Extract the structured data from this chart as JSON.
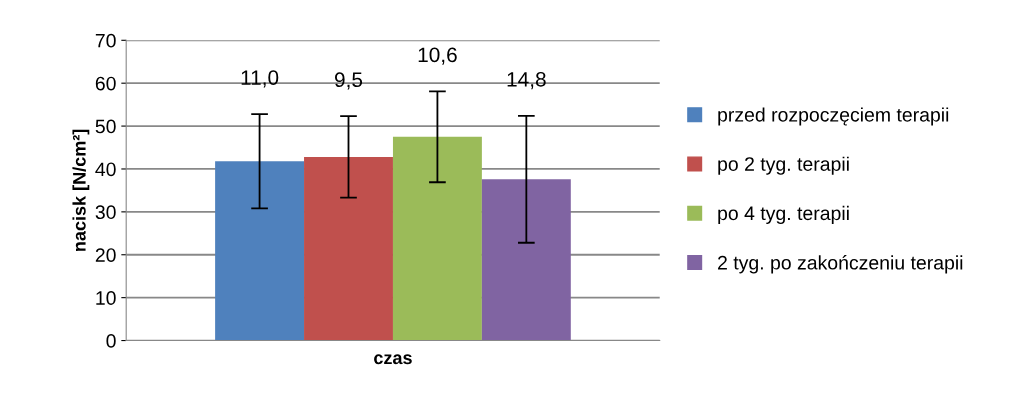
{
  "chart_data": {
    "type": "bar",
    "ylabel": "nacisk [N/cm²]",
    "xlabel": "czas",
    "categories": [
      null
    ],
    "series": [
      {
        "name": "przed rozpoczęciem terapii",
        "color": "#4f81bd",
        "values": [
          41.8
        ],
        "errors": [
          11.0
        ]
      },
      {
        "name": "po 2 tyg. terapii",
        "color": "#c0504d",
        "values": [
          42.8
        ],
        "errors": [
          9.5
        ]
      },
      {
        "name": "po 4 tyg. terapii",
        "color": "#9bbb59",
        "values": [
          47.5
        ],
        "errors": [
          10.6
        ]
      },
      {
        "name": "2 tyg. po zakończeniu terapii",
        "color": "#8064a2",
        "values": [
          37.6
        ],
        "errors": [
          14.8
        ]
      }
    ],
    "annotations": [
      {
        "text": "11,0",
        "y": 52.8
      },
      {
        "text": "9,5",
        "y": 52.3
      },
      {
        "text": "10,6",
        "y": 58.1
      },
      {
        "text": "14,8",
        "y": 52.4
      }
    ],
    "ylim": [
      0,
      70
    ],
    "yticks": [
      0,
      10,
      20,
      30,
      40,
      50,
      60,
      70
    ],
    "grid": "y",
    "legend": "right"
  }
}
